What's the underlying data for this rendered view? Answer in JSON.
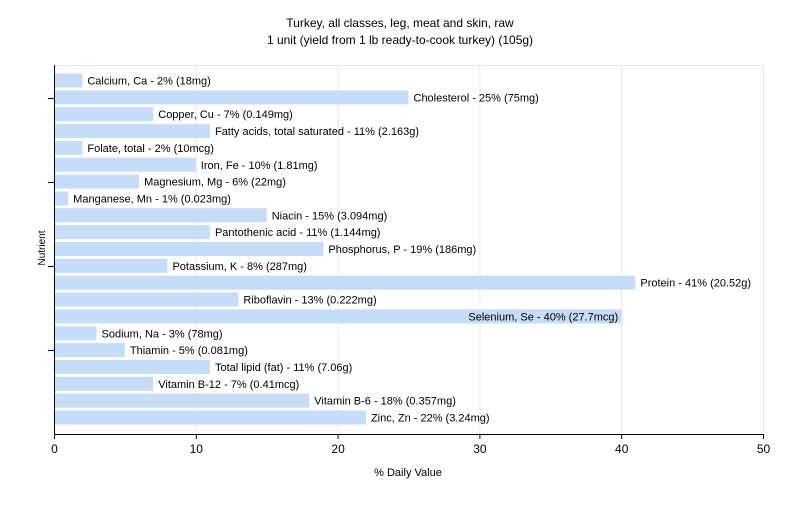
{
  "chart_data": {
    "type": "bar",
    "orientation": "horizontal",
    "title": "Turkey, all classes, leg, meat and skin, raw",
    "subtitle": "1 unit (yield from 1 lb ready-to-cook turkey) (105g)",
    "xlabel": "% Daily Value",
    "ylabel": "Nutrient",
    "xlim": [
      0,
      50
    ],
    "xticks": [
      "0",
      "10",
      "20",
      "30",
      "40",
      "50"
    ],
    "grid": true,
    "legend": "none",
    "colors": {
      "bar": "#c6dcf7",
      "grid": "#e6e6e6",
      "axis": "#000000"
    },
    "categories": [
      "Calcium, Ca",
      "Cholesterol",
      "Copper, Cu",
      "Fatty acids, total saturated",
      "Folate, total",
      "Iron, Fe",
      "Magnesium, Mg",
      "Manganese, Mn",
      "Niacin",
      "Pantothenic acid",
      "Phosphorus, P",
      "Potassium, K",
      "Protein",
      "Riboflavin",
      "Selenium, Se",
      "Sodium, Na",
      "Thiamin",
      "Total lipid (fat)",
      "Vitamin B-12",
      "Vitamin B-6",
      "Zinc, Zn"
    ],
    "values": [
      2,
      25,
      7,
      11,
      2,
      10,
      6,
      1,
      15,
      11,
      19,
      8,
      41,
      13,
      40,
      3,
      5,
      11,
      7,
      18,
      22
    ],
    "labels": [
      "Calcium, Ca - 2% (18mg)",
      "Cholesterol - 25% (75mg)",
      "Copper, Cu - 7% (0.149mg)",
      "Fatty acids, total saturated - 11% (2.163g)",
      "Folate, total - 2% (10mcg)",
      "Iron, Fe - 10% (1.81mg)",
      "Magnesium, Mg - 6% (22mg)",
      "Manganese, Mn - 1% (0.023mg)",
      "Niacin - 15% (3.094mg)",
      "Pantothenic acid - 11% (1.144mg)",
      "Phosphorus, P - 19% (186mg)",
      "Potassium, K - 8% (287mg)",
      "Protein - 41% (20.52g)",
      "Riboflavin - 13% (0.222mg)",
      "Selenium, Se - 40% (27.7mcg)",
      "Sodium, Na - 3% (78mg)",
      "Thiamin - 5% (0.081mg)",
      "Total lipid (fat) - 11% (7.06g)",
      "Vitamin B-12 - 7% (0.41mcg)",
      "Vitamin B-6 - 18% (0.357mg)",
      "Zinc, Zn - 22% (3.24mg)"
    ]
  }
}
